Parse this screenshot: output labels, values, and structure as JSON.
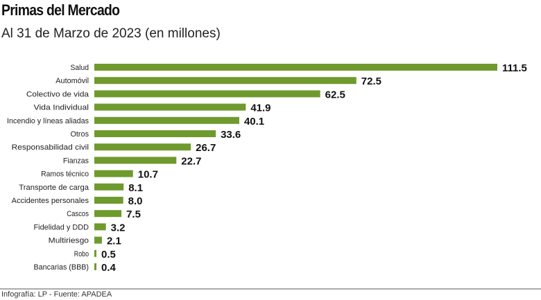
{
  "chart_data": {
    "type": "bar",
    "orientation": "horizontal",
    "title": "Primas del Mercado",
    "subtitle": "Al 31 de Marzo de 2023 (en millones)",
    "categories": [
      "Salud",
      "Automóvil",
      "Colectivo de vida",
      "Vida Individual",
      "Incendio y líneas aliadas",
      "Otros",
      "Responsabilidad civil",
      "Fianzas",
      "Ramos técnico",
      "Transporte de carga",
      "Accidentes personales",
      "Cascos",
      "Fidelidad y DDD",
      "Multiriesgo",
      "Robo",
      "Bancarias (BBB)"
    ],
    "values": [
      111.5,
      72.5,
      62.5,
      41.9,
      40.1,
      33.6,
      26.7,
      22.7,
      10.7,
      8.1,
      8.0,
      7.5,
      3.2,
      2.1,
      0.5,
      0.4
    ],
    "value_labels": [
      "111.5",
      "72.5",
      "62.5",
      "41.9",
      "40.1",
      "33.6",
      "26.7",
      "22.7",
      "10.7",
      "8.1",
      "8.0",
      "7.5",
      "3.2",
      "2.1",
      "0.5",
      "0.4"
    ],
    "bar_color": "#6f9a2e",
    "grid": false,
    "xlim": [
      0,
      111.5
    ]
  },
  "footer": "Infografía: LP - Fuente: APADEA"
}
